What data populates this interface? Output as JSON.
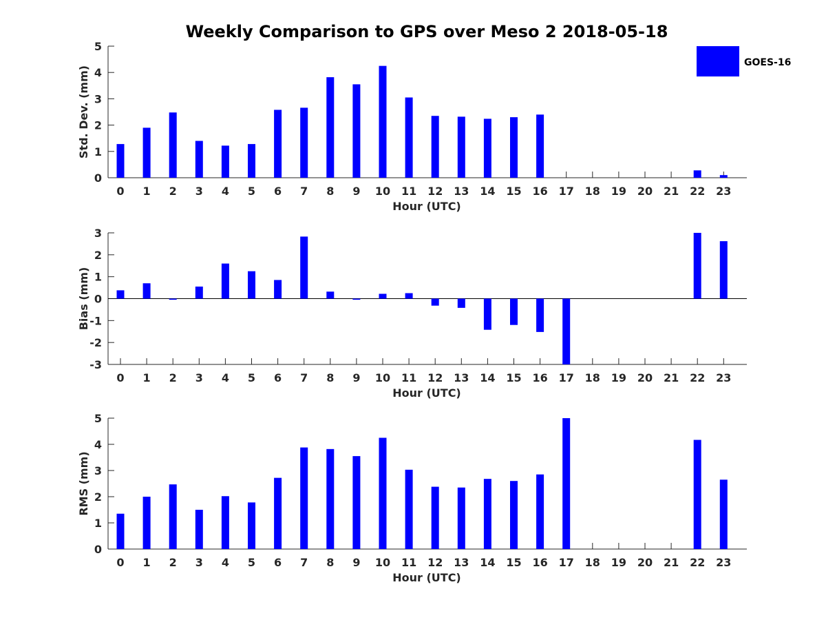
{
  "chart_data": {
    "title": "Weekly Comparison to GPS over Meso 2 2018-05-18",
    "type": "bar",
    "legend": {
      "entries": [
        "GOES-16"
      ],
      "location": "top-right"
    },
    "colors": {
      "bar": "#0000ff",
      "axis": "#262626",
      "zero_line": "#000000"
    },
    "categories": [
      "0",
      "1",
      "2",
      "3",
      "4",
      "5",
      "6",
      "7",
      "8",
      "9",
      "10",
      "11",
      "12",
      "13",
      "14",
      "15",
      "16",
      "17",
      "18",
      "19",
      "20",
      "21",
      "22",
      "23"
    ],
    "xlabel": "Hour (UTC)",
    "panels": [
      {
        "name": "std-dev",
        "ylabel": "Std. Dev. (mm)",
        "ylim": [
          0,
          5
        ],
        "yticks": [
          0,
          1,
          2,
          3,
          4,
          5
        ],
        "values": [
          1.28,
          1.9,
          2.48,
          1.4,
          1.22,
          1.28,
          2.58,
          2.66,
          3.82,
          3.55,
          4.25,
          3.05,
          2.35,
          2.32,
          2.24,
          2.3,
          2.4,
          0,
          0,
          0,
          0,
          0,
          0.28,
          0.1
        ]
      },
      {
        "name": "bias",
        "ylabel": "Bias (mm)",
        "ylim": [
          -3,
          3
        ],
        "yticks": [
          -3,
          -2,
          -1,
          0,
          1,
          2,
          3
        ],
        "values": [
          0.38,
          0.7,
          -0.05,
          0.55,
          1.6,
          1.25,
          0.85,
          2.83,
          0.32,
          -0.05,
          0.22,
          0.25,
          -0.32,
          -0.42,
          -1.42,
          -1.2,
          -1.52,
          -3.0,
          0,
          0,
          0,
          0,
          3.0,
          2.62
        ]
      },
      {
        "name": "rms",
        "ylabel": "RMS (mm)",
        "ylim": [
          0,
          5
        ],
        "yticks": [
          0,
          1,
          2,
          3,
          4,
          5
        ],
        "values": [
          1.35,
          2.0,
          2.47,
          1.5,
          2.02,
          1.78,
          2.72,
          3.88,
          3.82,
          3.55,
          4.25,
          3.03,
          2.38,
          2.35,
          2.68,
          2.6,
          2.85,
          5.0,
          0,
          0,
          0,
          0,
          4.17,
          2.65
        ]
      }
    ]
  }
}
